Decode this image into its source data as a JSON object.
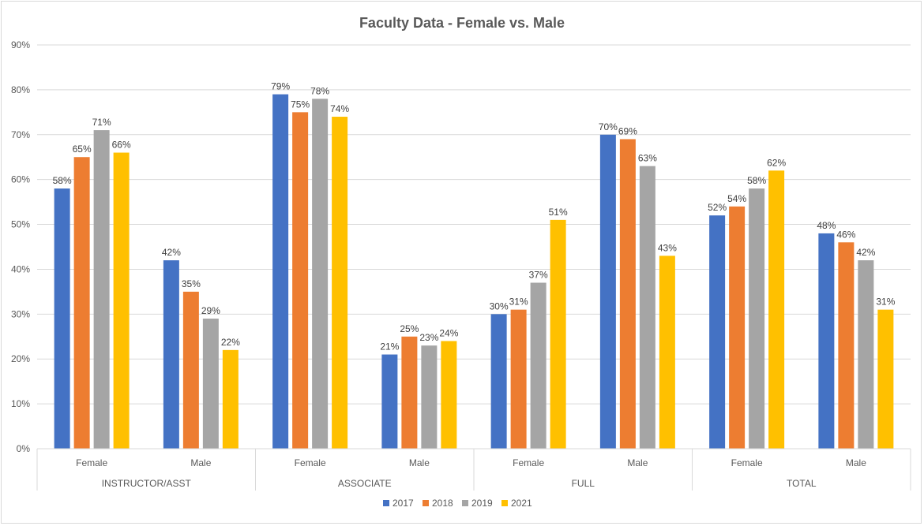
{
  "chart_data": {
    "type": "bar",
    "title": "Faculty Data - Female vs. Male",
    "groups": [
      "INSTRUCTOR/ASST",
      "ASSOCIATE",
      "FULL",
      "TOTAL"
    ],
    "categories": [
      "Female",
      "Male",
      "Female",
      "Male",
      "Female",
      "Male",
      "Female",
      "Male"
    ],
    "series": [
      {
        "name": "2017",
        "color": "#4472c4",
        "values": [
          58,
          42,
          79,
          21,
          30,
          70,
          52,
          48
        ],
        "labels": [
          "58%",
          "42%",
          "79%",
          "21%",
          "30%",
          "70%",
          "52%",
          "48%"
        ]
      },
      {
        "name": "2018",
        "color": "#ed7d31",
        "values": [
          65,
          35,
          75,
          25,
          31,
          69,
          54,
          46
        ],
        "labels": [
          "65%",
          "35%",
          "75%",
          "25%",
          "31%",
          "69%",
          "54%",
          "46%"
        ]
      },
      {
        "name": "2019",
        "color": "#a5a5a5",
        "values": [
          71,
          29,
          78,
          23,
          37,
          63,
          58,
          42
        ],
        "labels": [
          "71%",
          "29%",
          "78%",
          "23%",
          "37%",
          "63%",
          "58%",
          "42%"
        ]
      },
      {
        "name": "2021",
        "color": "#ffc000",
        "values": [
          66,
          22,
          74,
          24,
          51,
          43,
          62,
          31
        ],
        "labels": [
          "66%",
          "22%",
          "74%",
          "24%",
          "51%",
          "43%",
          "62%",
          "31%"
        ]
      }
    ],
    "ylim": [
      0,
      90
    ],
    "yticks": [
      "0%",
      "10%",
      "20%",
      "30%",
      "40%",
      "50%",
      "60%",
      "70%",
      "80%",
      "90%"
    ],
    "grid": true,
    "legend_position": "bottom"
  }
}
